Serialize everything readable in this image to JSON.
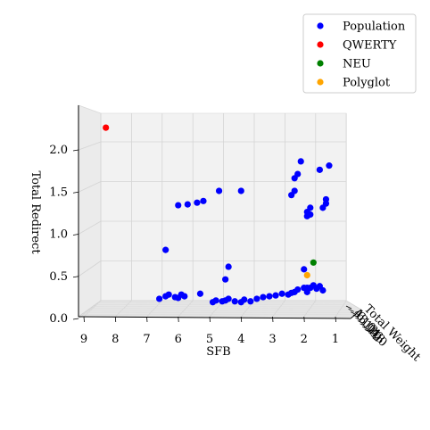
{
  "chart_data": {
    "type": "scatter",
    "title": "",
    "xlabel": "SFB",
    "ylabel": "Total Redirect",
    "zlabel": "Total Weight",
    "x_ticks": [
      "9",
      "8",
      "7",
      "6",
      "5",
      "4",
      "3",
      "2",
      "1"
    ],
    "y_ticks": [
      "0.0",
      "0.5",
      "1.0",
      "1.5",
      "2.0"
    ],
    "z_ticks": [
      "4",
      "6",
      "8",
      "10",
      "12",
      "14",
      "16",
      "18",
      "20"
    ],
    "grid": true,
    "legend_position": "top-right",
    "series": [
      {
        "name": "Population",
        "color": "#0000ff",
        "points": [
          [
            6.4,
            0.75
          ],
          [
            6.6,
            0.17
          ],
          [
            6.4,
            0.2
          ],
          [
            6.3,
            0.22
          ],
          [
            6.1,
            0.19
          ],
          [
            6.0,
            0.18
          ],
          [
            5.8,
            0.2
          ],
          [
            5.9,
            0.22
          ],
          [
            5.3,
            0.23
          ],
          [
            4.9,
            0.13
          ],
          [
            4.8,
            0.15
          ],
          [
            4.6,
            0.14
          ],
          [
            4.5,
            0.15
          ],
          [
            4.4,
            0.17
          ],
          [
            4.2,
            0.14
          ],
          [
            4.0,
            0.13
          ],
          [
            3.9,
            0.16
          ],
          [
            3.7,
            0.14
          ],
          [
            3.5,
            0.17
          ],
          [
            3.3,
            0.19
          ],
          [
            3.1,
            0.2
          ],
          [
            2.9,
            0.21
          ],
          [
            2.7,
            0.23
          ],
          [
            2.5,
            0.22
          ],
          [
            2.4,
            0.24
          ],
          [
            2.3,
            0.25
          ],
          [
            2.2,
            0.28
          ],
          [
            2.0,
            0.3
          ],
          [
            1.9,
            0.25
          ],
          [
            1.8,
            0.3
          ],
          [
            1.7,
            0.33
          ],
          [
            1.6,
            0.29
          ],
          [
            1.5,
            0.32
          ],
          [
            1.4,
            0.27
          ],
          [
            4.4,
            0.55
          ],
          [
            4.5,
            0.4
          ],
          [
            6.0,
            1.28
          ],
          [
            5.7,
            1.29
          ],
          [
            5.4,
            1.31
          ],
          [
            5.2,
            1.33
          ],
          [
            4.7,
            1.45
          ],
          [
            4.0,
            1.45
          ],
          [
            2.0,
            0.52
          ],
          [
            1.9,
            0.3
          ],
          [
            2.3,
            1.45
          ],
          [
            2.4,
            1.4
          ],
          [
            2.3,
            1.6
          ],
          [
            2.2,
            1.65
          ],
          [
            2.1,
            1.8
          ],
          [
            1.9,
            1.2
          ],
          [
            1.9,
            1.15
          ],
          [
            1.8,
            1.17
          ],
          [
            1.4,
            1.25
          ],
          [
            1.3,
            1.3
          ],
          [
            1.5,
            1.7
          ],
          [
            1.2,
            1.75
          ],
          [
            1.3,
            1.35
          ],
          [
            1.8,
            1.25
          ]
        ]
      },
      {
        "name": "QWERTY",
        "color": "#ff0000",
        "points": [
          [
            8.3,
            2.2
          ]
        ]
      },
      {
        "name": "NEU",
        "color": "#008000",
        "points": [
          [
            1.7,
            0.6
          ]
        ]
      },
      {
        "name": "Polyglot",
        "color": "#ffa500",
        "points": [
          [
            1.9,
            0.45
          ]
        ]
      }
    ]
  }
}
